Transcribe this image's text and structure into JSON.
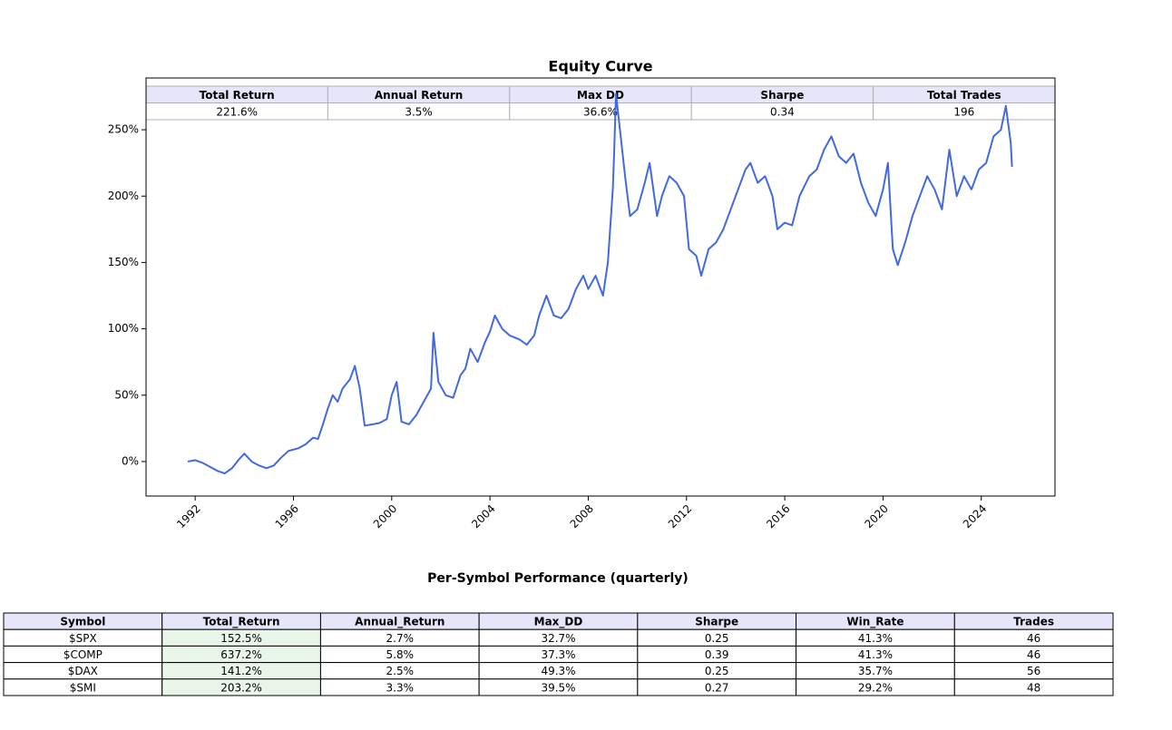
{
  "chart_data": {
    "type": "line",
    "title": "Equity Curve",
    "color": "#4169e1",
    "xlim": [
      1990.0,
      2027.0
    ],
    "xticks": [
      1992,
      1996,
      2000,
      2004,
      2008,
      2012,
      2016,
      2020,
      2024
    ],
    "ylim": [
      -26,
      289
    ],
    "yticks": [
      {
        "value": 0,
        "label": "0%"
      },
      {
        "value": 50,
        "label": "50%"
      },
      {
        "value": 100,
        "label": "100%"
      },
      {
        "value": 150,
        "label": "150%"
      },
      {
        "value": 200,
        "label": "200%"
      },
      {
        "value": 250,
        "label": "250%"
      }
    ],
    "x": [
      1991.7,
      1992.0,
      1992.3,
      1992.6,
      1992.9,
      1993.2,
      1993.5,
      1993.8,
      1994.0,
      1994.3,
      1994.6,
      1994.9,
      1995.2,
      1995.5,
      1995.8,
      1996.2,
      1996.5,
      1996.8,
      1997.0,
      1997.2,
      1997.4,
      1997.6,
      1997.8,
      1998.0,
      1998.3,
      1998.5,
      1998.7,
      1998.9,
      1999.2,
      1999.5,
      1999.8,
      2000.0,
      2000.2,
      2000.4,
      2000.7,
      2001.0,
      2001.3,
      2001.6,
      2001.7,
      2001.9,
      2002.2,
      2002.5,
      2002.8,
      2003.0,
      2003.2,
      2003.5,
      2003.8,
      2004.0,
      2004.2,
      2004.5,
      2004.8,
      2005.2,
      2005.5,
      2005.8,
      2006.0,
      2006.3,
      2006.6,
      2006.9,
      2007.2,
      2007.5,
      2007.8,
      2008.0,
      2008.3,
      2008.6,
      2008.8,
      2009.0,
      2009.05,
      2009.13,
      2009.5,
      2009.7,
      2010.0,
      2010.3,
      2010.5,
      2010.8,
      2011.0,
      2011.3,
      2011.6,
      2011.9,
      2012.1,
      2012.4,
      2012.6,
      2012.9,
      2013.2,
      2013.5,
      2013.8,
      2014.1,
      2014.4,
      2014.6,
      2014.9,
      2015.2,
      2015.5,
      2015.7,
      2016.0,
      2016.3,
      2016.6,
      2017.0,
      2017.3,
      2017.6,
      2017.9,
      2018.2,
      2018.5,
      2018.8,
      2019.1,
      2019.4,
      2019.7,
      2020.0,
      2020.2,
      2020.4,
      2020.6,
      2020.9,
      2021.2,
      2021.5,
      2021.8,
      2022.1,
      2022.4,
      2022.7,
      2023.0,
      2023.3,
      2023.6,
      2023.9,
      2024.2,
      2024.5,
      2024.8,
      2025.0,
      2025.2,
      2025.25
    ],
    "values": [
      0,
      1,
      -1,
      -4,
      -7,
      -9,
      -5,
      2,
      6,
      0,
      -3,
      -5,
      -3,
      3,
      8,
      10,
      13,
      18,
      17,
      28,
      40,
      50,
      45,
      55,
      62,
      72,
      55,
      27,
      28,
      29,
      32,
      50,
      60,
      30,
      28,
      35,
      45,
      55,
      97,
      60,
      50,
      48,
      65,
      70,
      85,
      75,
      90,
      98,
      110,
      100,
      95,
      92,
      88,
      95,
      110,
      125,
      110,
      108,
      115,
      130,
      140,
      130,
      140,
      125,
      150,
      205,
      230,
      277,
      215,
      185,
      190,
      210,
      225,
      185,
      200,
      215,
      210,
      200,
      160,
      155,
      140,
      160,
      165,
      175,
      190,
      205,
      220,
      225,
      210,
      215,
      200,
      175,
      180,
      178,
      200,
      215,
      220,
      235,
      245,
      230,
      225,
      232,
      210,
      195,
      185,
      205,
      225,
      160,
      148,
      165,
      185,
      200,
      215,
      205,
      190,
      235,
      200,
      215,
      205,
      220,
      225,
      245,
      250,
      268,
      240,
      222
    ]
  },
  "summary_table": {
    "header_color": "#e6e6fa",
    "headers": [
      "Total Return",
      "Annual Return",
      "Max DD",
      "Sharpe",
      "Total Trades"
    ],
    "rows": [
      [
        "221.6%",
        "3.5%",
        "36.6%",
        "0.34",
        "196"
      ]
    ]
  },
  "performance_table": {
    "title": "Per-Symbol Performance (quarterly)",
    "header_color": "#e6e6fa",
    "highlight_color": "#e8f5e9",
    "highlight_column": 1,
    "headers": [
      "Symbol",
      "Total_Return",
      "Annual_Return",
      "Max_DD",
      "Sharpe",
      "Win_Rate",
      "Trades"
    ],
    "rows": [
      [
        "$SPX",
        "152.5%",
        "2.7%",
        "32.7%",
        "0.25",
        "41.3%",
        "46"
      ],
      [
        "$COMP",
        "637.2%",
        "5.8%",
        "37.3%",
        "0.39",
        "41.3%",
        "46"
      ],
      [
        "$DAX",
        "141.2%",
        "2.5%",
        "49.3%",
        "0.25",
        "35.7%",
        "56"
      ],
      [
        "$SMI",
        "203.2%",
        "3.3%",
        "39.5%",
        "0.27",
        "29.2%",
        "48"
      ]
    ]
  }
}
